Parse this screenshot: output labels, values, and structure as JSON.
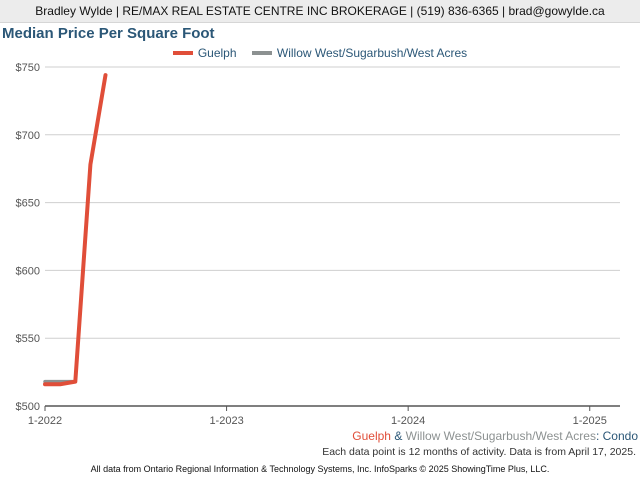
{
  "header": {
    "text": "Bradley Wylde | RE/MAX REAL ESTATE CENTRE INC BROKERAGE | (519) 836-6365 | brad@gowylde.ca"
  },
  "chart_data": {
    "type": "line",
    "title": "Median Price Per Square Foot",
    "xlabel": "",
    "ylabel": "",
    "ylim": [
      500,
      750
    ],
    "y_ticks": [
      "$500",
      "$550",
      "$600",
      "$650",
      "$700",
      "$750"
    ],
    "y_tick_values": [
      500,
      550,
      600,
      650,
      700,
      750
    ],
    "x_ticks": [
      "1-2022",
      "1-2023",
      "1-2024",
      "1-2025"
    ],
    "xlim": [
      "2022-01",
      "2025-03"
    ],
    "grid": true,
    "legend_position": "top-center",
    "series": [
      {
        "name": "Guelph",
        "color": "#e04e39",
        "x": [
          "2022-01",
          "2022-02",
          "2022-03",
          "2022-04",
          "2022-05"
        ],
        "y": [
          516,
          516,
          518,
          678,
          744
        ]
      },
      {
        "name": "Willow West/Sugarbush/West Acres",
        "color": "#8c9191",
        "x": [
          "2022-01",
          "2022-02",
          "2022-03"
        ],
        "y": [
          518,
          518,
          518
        ]
      }
    ]
  },
  "footer": {
    "series_a": "Guelph",
    "amp": " & ",
    "series_b": "Willow West/Sugarbush/West Acres",
    "colon": ": ",
    "property_type": "Condo",
    "note": "Each data point is 12 months of activity. Data is from April 17, 2025.",
    "source": "All data from Ontario Regional Information & Technology Systems, Inc. InfoSparks © 2025 ShowingTime Plus, LLC."
  }
}
